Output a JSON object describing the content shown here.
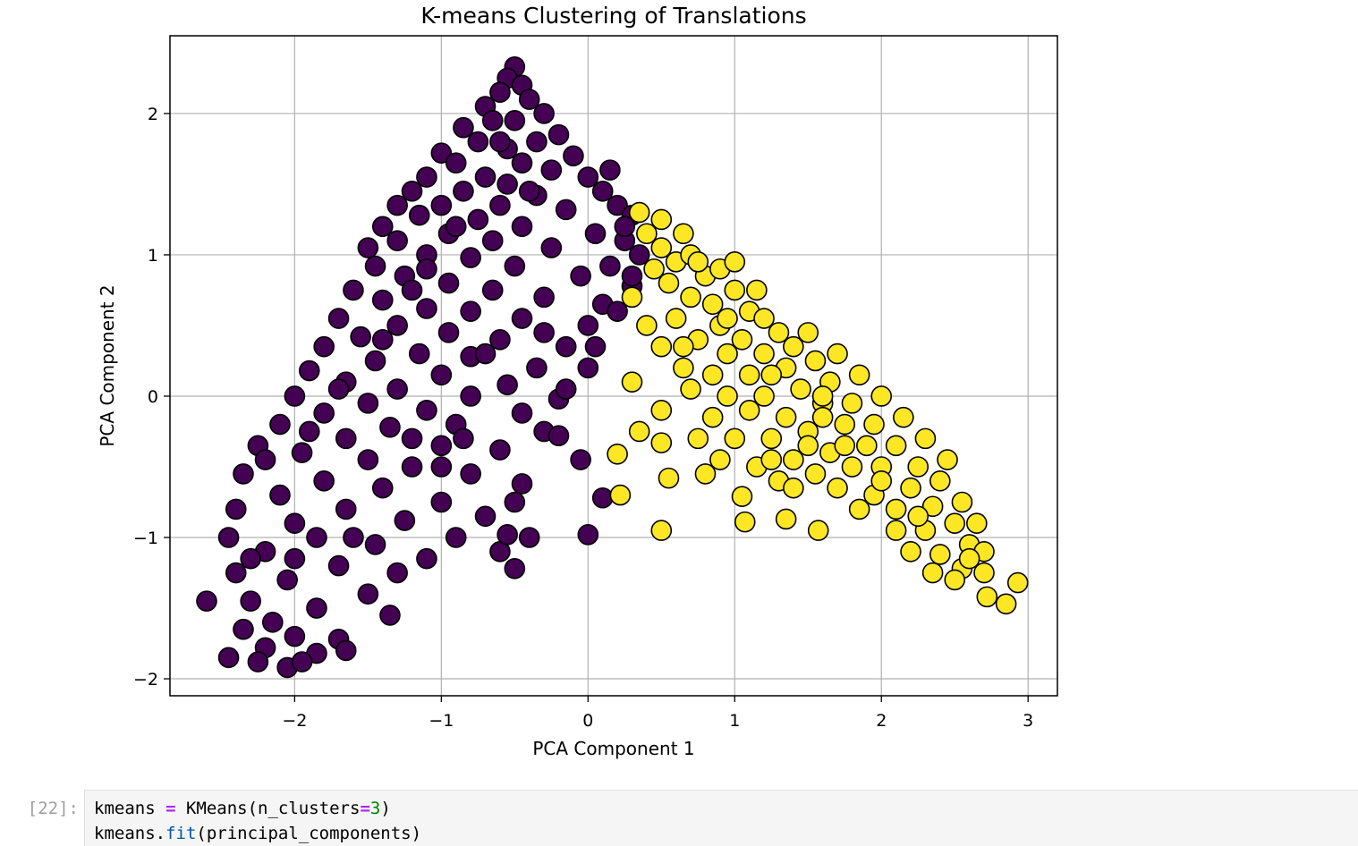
{
  "chart_data": {
    "type": "scatter",
    "title": "K-means Clustering of Translations",
    "xlabel": "PCA Component 1",
    "ylabel": "PCA Component 2",
    "xlim": [
      -2.85,
      3.2
    ],
    "ylim": [
      -2.12,
      2.55
    ],
    "xticks": [
      -2,
      -1,
      0,
      1,
      2,
      3
    ],
    "yticks": [
      -2,
      -1,
      0,
      1,
      2
    ],
    "xtick_labels": [
      "−2",
      "−1",
      "0",
      "1",
      "2",
      "3"
    ],
    "ytick_labels": [
      "−2",
      "−1",
      "0",
      "1",
      "2"
    ],
    "grid": true,
    "marker_edge_color": "#000000",
    "series": [
      {
        "color": "#440154",
        "points": [
          [
            -0.5,
            2.33
          ],
          [
            -0.55,
            2.25
          ],
          [
            -0.45,
            2.2
          ],
          [
            -0.6,
            2.15
          ],
          [
            -0.4,
            2.1
          ],
          [
            -0.7,
            2.05
          ],
          [
            -0.3,
            2.0
          ],
          [
            -0.65,
            1.95
          ],
          [
            -0.5,
            1.95
          ],
          [
            -0.85,
            1.9
          ],
          [
            -0.2,
            1.85
          ],
          [
            -0.75,
            1.8
          ],
          [
            -0.35,
            1.8
          ],
          [
            -0.55,
            1.75
          ],
          [
            -1.0,
            1.72
          ],
          [
            -0.1,
            1.7
          ],
          [
            -0.9,
            1.65
          ],
          [
            -0.45,
            1.65
          ],
          [
            -0.25,
            1.6
          ],
          [
            -1.1,
            1.55
          ],
          [
            -0.7,
            1.55
          ],
          [
            0.0,
            1.55
          ],
          [
            -0.55,
            1.5
          ],
          [
            -1.2,
            1.45
          ],
          [
            -0.85,
            1.45
          ],
          [
            0.1,
            1.45
          ],
          [
            -0.35,
            1.42
          ],
          [
            -1.3,
            1.35
          ],
          [
            -1.0,
            1.35
          ],
          [
            -0.6,
            1.35
          ],
          [
            0.2,
            1.35
          ],
          [
            -0.15,
            1.32
          ],
          [
            -1.15,
            1.28
          ],
          [
            -0.75,
            1.25
          ],
          [
            0.3,
            1.28
          ],
          [
            -1.4,
            1.2
          ],
          [
            -0.45,
            1.2
          ],
          [
            -0.95,
            1.15
          ],
          [
            0.05,
            1.15
          ],
          [
            -1.3,
            1.1
          ],
          [
            -0.65,
            1.1
          ],
          [
            0.25,
            1.1
          ],
          [
            -1.5,
            1.05
          ],
          [
            -0.25,
            1.05
          ],
          [
            -1.1,
            1.0
          ],
          [
            0.35,
            1.0
          ],
          [
            -0.8,
            0.98
          ],
          [
            -1.45,
            0.92
          ],
          [
            -0.5,
            0.92
          ],
          [
            0.15,
            0.92
          ],
          [
            -1.25,
            0.85
          ],
          [
            -0.05,
            0.85
          ],
          [
            -0.95,
            0.8
          ],
          [
            0.3,
            0.78
          ],
          [
            -1.6,
            0.75
          ],
          [
            -0.65,
            0.75
          ],
          [
            -1.4,
            0.68
          ],
          [
            -0.3,
            0.7
          ],
          [
            0.1,
            0.65
          ],
          [
            -1.1,
            0.62
          ],
          [
            -0.8,
            0.6
          ],
          [
            -1.7,
            0.55
          ],
          [
            -0.45,
            0.55
          ],
          [
            -1.3,
            0.5
          ],
          [
            0.0,
            0.5
          ],
          [
            -0.95,
            0.45
          ],
          [
            -1.55,
            0.42
          ],
          [
            -0.6,
            0.4
          ],
          [
            -0.15,
            0.35
          ],
          [
            -1.8,
            0.35
          ],
          [
            -1.15,
            0.3
          ],
          [
            -0.8,
            0.28
          ],
          [
            -1.45,
            0.25
          ],
          [
            -0.35,
            0.2
          ],
          [
            -1.9,
            0.18
          ],
          [
            0.0,
            0.2
          ],
          [
            -1.0,
            0.15
          ],
          [
            -1.65,
            0.1
          ],
          [
            -0.55,
            0.08
          ],
          [
            -1.3,
            0.05
          ],
          [
            -2.0,
            0.0
          ],
          [
            -0.8,
            0.0
          ],
          [
            -0.2,
            -0.02
          ],
          [
            -1.5,
            -0.05
          ],
          [
            -1.1,
            -0.1
          ],
          [
            -1.8,
            -0.12
          ],
          [
            -0.45,
            -0.12
          ],
          [
            -2.1,
            -0.2
          ],
          [
            -0.9,
            -0.2
          ],
          [
            -1.35,
            -0.22
          ],
          [
            -0.3,
            -0.25
          ],
          [
            -1.65,
            -0.3
          ],
          [
            -2.25,
            -0.35
          ],
          [
            -1.0,
            -0.35
          ],
          [
            -1.95,
            -0.4
          ],
          [
            -0.6,
            -0.38
          ],
          [
            -1.5,
            -0.45
          ],
          [
            -2.35,
            -0.55
          ],
          [
            -1.2,
            -0.5
          ],
          [
            -0.8,
            -0.55
          ],
          [
            -1.8,
            -0.6
          ],
          [
            -2.1,
            -0.7
          ],
          [
            -1.4,
            -0.65
          ],
          [
            -0.45,
            -0.62
          ],
          [
            -2.4,
            -0.8
          ],
          [
            -1.0,
            -0.75
          ],
          [
            -1.65,
            -0.8
          ],
          [
            -2.0,
            -0.9
          ],
          [
            -1.25,
            -0.88
          ],
          [
            -0.7,
            -0.85
          ],
          [
            -2.45,
            -1.0
          ],
          [
            -1.85,
            -1.0
          ],
          [
            -1.45,
            -1.05
          ],
          [
            -0.9,
            -1.0
          ],
          [
            -2.2,
            -1.1
          ],
          [
            -1.1,
            -1.15
          ],
          [
            -2.4,
            -1.25
          ],
          [
            -1.7,
            -1.2
          ],
          [
            -1.3,
            -1.25
          ],
          [
            -0.6,
            -1.1
          ],
          [
            -2.05,
            -1.3
          ],
          [
            -2.3,
            -1.45
          ],
          [
            -1.5,
            -1.4
          ],
          [
            -1.85,
            -1.5
          ],
          [
            -2.15,
            -1.6
          ],
          [
            -1.35,
            -1.55
          ],
          [
            -2.0,
            -1.7
          ],
          [
            -1.7,
            -1.72
          ],
          [
            -2.2,
            -1.78
          ],
          [
            -1.85,
            -1.82
          ],
          [
            -2.35,
            -1.65
          ],
          [
            -2.6,
            -1.45
          ],
          [
            -2.45,
            -1.85
          ],
          [
            -2.25,
            -1.88
          ],
          [
            -2.05,
            -1.92
          ],
          [
            -1.95,
            -1.88
          ],
          [
            -1.65,
            -1.8
          ],
          [
            -0.5,
            -0.75
          ],
          [
            -0.4,
            -1.0
          ],
          [
            -0.5,
            -1.22
          ],
          [
            -0.55,
            -0.98
          ],
          [
            0.0,
            -0.98
          ],
          [
            0.1,
            -0.72
          ],
          [
            -0.05,
            -0.45
          ],
          [
            -0.2,
            -0.28
          ],
          [
            -0.15,
            0.05
          ],
          [
            0.05,
            0.35
          ],
          [
            0.2,
            0.6
          ],
          [
            0.3,
            0.85
          ],
          [
            0.25,
            1.2
          ],
          [
            0.15,
            1.6
          ],
          [
            -0.9,
            1.2
          ],
          [
            -1.2,
            0.75
          ],
          [
            -1.7,
            0.05
          ],
          [
            -2.2,
            -0.45
          ],
          [
            -2.0,
            -1.15
          ],
          [
            -1.0,
            -0.5
          ],
          [
            -0.7,
            0.3
          ],
          [
            -1.4,
            0.4
          ],
          [
            -1.9,
            -0.25
          ],
          [
            -0.85,
            -0.3
          ],
          [
            -0.3,
            0.45
          ],
          [
            -1.6,
            -1.0
          ],
          [
            -1.2,
            -0.3
          ],
          [
            -2.3,
            -1.15
          ],
          [
            -1.1,
            0.9
          ],
          [
            -0.4,
            1.45
          ],
          [
            -0.6,
            1.8
          ]
        ]
      },
      {
        "color": "#fde725",
        "points": [
          [
            0.35,
            1.3
          ],
          [
            0.4,
            1.15
          ],
          [
            0.5,
            1.05
          ],
          [
            0.45,
            0.9
          ],
          [
            0.6,
            0.95
          ],
          [
            0.7,
            1.0
          ],
          [
            0.55,
            0.8
          ],
          [
            0.8,
            0.85
          ],
          [
            0.9,
            0.9
          ],
          [
            1.0,
            0.95
          ],
          [
            0.7,
            0.7
          ],
          [
            0.85,
            0.65
          ],
          [
            1.0,
            0.75
          ],
          [
            0.6,
            0.55
          ],
          [
            1.1,
            0.6
          ],
          [
            0.9,
            0.5
          ],
          [
            1.2,
            0.55
          ],
          [
            0.75,
            0.4
          ],
          [
            1.05,
            0.4
          ],
          [
            1.3,
            0.45
          ],
          [
            0.5,
            0.35
          ],
          [
            0.95,
            0.3
          ],
          [
            1.2,
            0.3
          ],
          [
            1.4,
            0.35
          ],
          [
            0.65,
            0.2
          ],
          [
            0.85,
            0.15
          ],
          [
            1.1,
            0.15
          ],
          [
            1.35,
            0.2
          ],
          [
            1.55,
            0.25
          ],
          [
            0.3,
            0.1
          ],
          [
            0.7,
            0.05
          ],
          [
            0.95,
            0.0
          ],
          [
            1.2,
            0.0
          ],
          [
            1.45,
            0.05
          ],
          [
            1.65,
            0.1
          ],
          [
            0.5,
            -0.1
          ],
          [
            0.85,
            -0.15
          ],
          [
            1.1,
            -0.1
          ],
          [
            1.35,
            -0.15
          ],
          [
            1.6,
            -0.05
          ],
          [
            1.8,
            -0.05
          ],
          [
            0.35,
            -0.25
          ],
          [
            0.75,
            -0.3
          ],
          [
            1.0,
            -0.3
          ],
          [
            1.25,
            -0.3
          ],
          [
            1.5,
            -0.25
          ],
          [
            1.75,
            -0.2
          ],
          [
            1.95,
            -0.2
          ],
          [
            0.5,
            -0.33
          ],
          [
            0.9,
            -0.45
          ],
          [
            1.15,
            -0.5
          ],
          [
            1.4,
            -0.45
          ],
          [
            1.65,
            -0.4
          ],
          [
            1.9,
            -0.35
          ],
          [
            2.1,
            -0.35
          ],
          [
            0.2,
            -0.41
          ],
          [
            0.55,
            -0.58
          ],
          [
            0.8,
            -0.55
          ],
          [
            1.3,
            -0.6
          ],
          [
            1.55,
            -0.55
          ],
          [
            1.8,
            -0.5
          ],
          [
            2.0,
            -0.5
          ],
          [
            2.25,
            -0.5
          ],
          [
            0.22,
            -0.7
          ],
          [
            0.5,
            -0.95
          ],
          [
            1.05,
            -0.71
          ],
          [
            1.4,
            -0.65
          ],
          [
            1.7,
            -0.65
          ],
          [
            1.95,
            -0.7
          ],
          [
            2.2,
            -0.65
          ],
          [
            2.4,
            -0.6
          ],
          [
            1.07,
            -0.89
          ],
          [
            1.35,
            -0.87
          ],
          [
            1.57,
            -0.95
          ],
          [
            1.85,
            -0.8
          ],
          [
            2.1,
            -0.8
          ],
          [
            2.35,
            -0.78
          ],
          [
            2.55,
            -0.75
          ],
          [
            2.1,
            -0.95
          ],
          [
            2.3,
            -0.95
          ],
          [
            2.5,
            -0.9
          ],
          [
            2.65,
            -0.9
          ],
          [
            2.2,
            -1.1
          ],
          [
            2.4,
            -1.12
          ],
          [
            2.6,
            -1.05
          ],
          [
            2.7,
            -1.1
          ],
          [
            2.35,
            -1.25
          ],
          [
            2.55,
            -1.22
          ],
          [
            2.7,
            -1.25
          ],
          [
            2.5,
            -1.3
          ],
          [
            2.72,
            -1.42
          ],
          [
            2.85,
            -1.47
          ],
          [
            2.93,
            -1.32
          ],
          [
            1.6,
            0.0
          ],
          [
            1.75,
            -0.35
          ],
          [
            1.5,
            -0.35
          ],
          [
            1.25,
            -0.45
          ],
          [
            0.65,
            0.35
          ],
          [
            0.4,
            0.5
          ],
          [
            0.3,
            0.7
          ],
          [
            0.5,
            1.25
          ],
          [
            0.65,
            1.15
          ],
          [
            0.75,
            0.95
          ],
          [
            1.15,
            0.75
          ],
          [
            1.5,
            0.45
          ],
          [
            1.7,
            0.3
          ],
          [
            1.85,
            0.15
          ],
          [
            2.0,
            0.0
          ],
          [
            2.15,
            -0.15
          ],
          [
            2.3,
            -0.3
          ],
          [
            2.45,
            -0.45
          ],
          [
            1.25,
            0.15
          ],
          [
            0.95,
            0.55
          ],
          [
            1.6,
            -0.15
          ],
          [
            2.0,
            -0.6
          ],
          [
            2.25,
            -0.85
          ],
          [
            2.6,
            -1.15
          ]
        ]
      }
    ]
  },
  "notebook": {
    "prompt": "[22]:",
    "code_lines": [
      {
        "segments": [
          {
            "text": "kmeans ",
            "cls": ""
          },
          {
            "text": "=",
            "cls": "op"
          },
          {
            "text": " KMeans(n_clusters",
            "cls": ""
          },
          {
            "text": "=",
            "cls": "op"
          },
          {
            "text": "3",
            "cls": "num"
          },
          {
            "text": ")",
            "cls": ""
          }
        ]
      },
      {
        "segments": [
          {
            "text": "kmeans.",
            "cls": ""
          },
          {
            "text": "fit",
            "cls": "fn"
          },
          {
            "text": "(principal_components)",
            "cls": ""
          }
        ]
      }
    ]
  }
}
